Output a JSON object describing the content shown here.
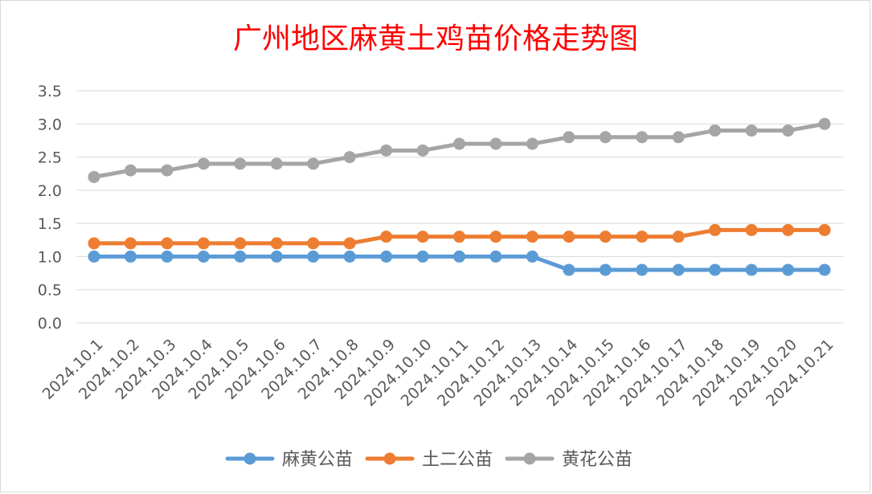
{
  "chart_data": {
    "type": "line",
    "title": "广州地区麻黄土鸡苗价格走势图",
    "xlabel": "",
    "ylabel": "",
    "categories": [
      "2024.10.1",
      "2024.10.2",
      "2024.10.3",
      "2024.10.4",
      "2024.10.5",
      "2024.10.6",
      "2024.10.7",
      "2024.10.8",
      "2024.10.9",
      "2024.10.10",
      "2024.10.11",
      "2024.10.12",
      "2024.10.13",
      "2024.10.14",
      "2024.10.15",
      "2024.10.16",
      "2024.10.17",
      "2024.10.18",
      "2024.10.19",
      "2024.10.20",
      "2024.10.21"
    ],
    "y_ticks": [
      "0.0",
      "0.5",
      "1.0",
      "1.5",
      "2.0",
      "2.5",
      "3.0",
      "3.5"
    ],
    "ylim": [
      0,
      3.5
    ],
    "grid": true,
    "legend_position": "bottom",
    "series": [
      {
        "name": "麻黄公苗",
        "color": "#5b9bd5",
        "values": [
          1.0,
          1.0,
          1.0,
          1.0,
          1.0,
          1.0,
          1.0,
          1.0,
          1.0,
          1.0,
          1.0,
          1.0,
          1.0,
          0.8,
          0.8,
          0.8,
          0.8,
          0.8,
          0.8,
          0.8,
          0.8
        ]
      },
      {
        "name": "土二公苗",
        "color": "#ed7d31",
        "values": [
          1.2,
          1.2,
          1.2,
          1.2,
          1.2,
          1.2,
          1.2,
          1.2,
          1.3,
          1.3,
          1.3,
          1.3,
          1.3,
          1.3,
          1.3,
          1.3,
          1.3,
          1.4,
          1.4,
          1.4,
          1.4
        ]
      },
      {
        "name": "黄花公苗",
        "color": "#a5a5a5",
        "values": [
          2.2,
          2.3,
          2.3,
          2.4,
          2.4,
          2.4,
          2.4,
          2.5,
          2.6,
          2.6,
          2.7,
          2.7,
          2.7,
          2.8,
          2.8,
          2.8,
          2.8,
          2.9,
          2.9,
          2.9,
          3.0
        ]
      }
    ],
    "title_color": "#ff0000"
  }
}
